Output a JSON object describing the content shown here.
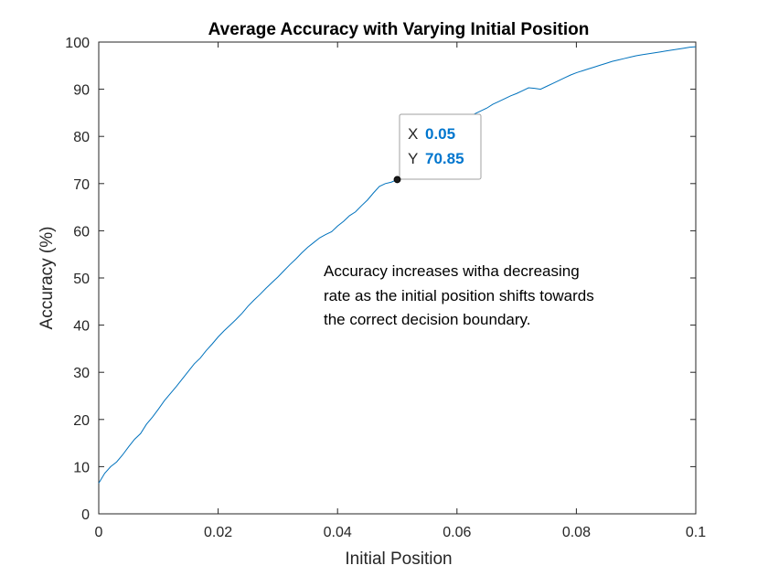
{
  "chart_data": {
    "type": "line",
    "title": "Average Accuracy with Varying Initial Position",
    "xlabel": "Initial Position",
    "ylabel": "Accuracy (%)",
    "xlim": [
      0,
      0.1
    ],
    "ylim": [
      0,
      100
    ],
    "x_ticks": [
      "0",
      "0.02",
      "0.04",
      "0.06",
      "0.08",
      "0.1"
    ],
    "y_ticks": [
      "0",
      "10",
      "20",
      "30",
      "40",
      "50",
      "60",
      "70",
      "80",
      "90",
      "100"
    ],
    "grid": false,
    "series_color": "#0072BD",
    "series": [
      {
        "x": [
          0,
          0.001,
          0.002,
          0.003,
          0.004,
          0.005,
          0.006,
          0.007,
          0.008,
          0.009,
          0.01,
          0.011,
          0.012,
          0.013,
          0.014,
          0.015,
          0.016,
          0.017,
          0.018,
          0.019,
          0.02,
          0.021,
          0.022,
          0.023,
          0.024,
          0.025,
          0.026,
          0.027,
          0.028,
          0.029,
          0.03,
          0.031,
          0.032,
          0.033,
          0.034,
          0.035,
          0.036,
          0.037,
          0.038,
          0.039,
          0.04,
          0.041,
          0.042,
          0.043,
          0.044,
          0.045,
          0.046,
          0.047,
          0.048,
          0.049,
          0.05,
          0.051,
          0.052,
          0.053,
          0.054,
          0.055,
          0.056,
          0.057,
          0.058,
          0.059,
          0.06,
          0.061,
          0.062,
          0.063,
          0.064,
          0.065,
          0.066,
          0.067,
          0.068,
          0.069,
          0.07,
          0.071,
          0.072,
          0.073,
          0.074,
          0.075,
          0.076,
          0.077,
          0.078,
          0.079,
          0.08,
          0.081,
          0.082,
          0.083,
          0.084,
          0.085,
          0.086,
          0.087,
          0.088,
          0.089,
          0.09,
          0.091,
          0.092,
          0.093,
          0.094,
          0.095,
          0.096,
          0.097,
          0.098,
          0.099,
          0.1
        ],
        "values": [
          6.5,
          8.6,
          10.0,
          11.0,
          12.5,
          14.2,
          15.8,
          17.0,
          19.0,
          20.5,
          22.2,
          24.0,
          25.5,
          27.0,
          28.6,
          30.2,
          31.8,
          33.0,
          34.6,
          36.0,
          37.5,
          38.8,
          40.0,
          41.2,
          42.5,
          44.0,
          45.3,
          46.5,
          47.8,
          49.0,
          50.2,
          51.5,
          52.8,
          54.0,
          55.3,
          56.5,
          57.5,
          58.5,
          59.2,
          59.8,
          61.0,
          62.0,
          63.2,
          64.0,
          65.3,
          66.5,
          68.0,
          69.4,
          70.0,
          70.3,
          70.85,
          72.0,
          73.5,
          75.0,
          76.5,
          77.8,
          79.0,
          80.0,
          81.0,
          81.8,
          82.5,
          83.3,
          84.0,
          84.8,
          85.4,
          86.0,
          86.8,
          87.4,
          88.0,
          88.6,
          89.1,
          89.7,
          90.3,
          90.2,
          90.0,
          90.6,
          91.2,
          91.8,
          92.4,
          93.0,
          93.5,
          93.9,
          94.3,
          94.7,
          95.1,
          95.5,
          95.9,
          96.2,
          96.5,
          96.8,
          97.1,
          97.3,
          97.5,
          97.7,
          97.9,
          98.1,
          98.3,
          98.5,
          98.7,
          98.9,
          99.0
        ]
      }
    ],
    "datatip": {
      "x_key": "X",
      "x_value": "0.05",
      "y_key": "Y",
      "y_value": "70.85",
      "x": 0.05,
      "y": 70.85
    },
    "annotation": [
      "Accuracy increases witha decreasing",
      "rate as the initial position shifts towards",
      "the correct decision boundary."
    ]
  },
  "colors": {
    "value_text": "#0076CE",
    "axis": "#262626",
    "tip_border": "#A0A0A0"
  }
}
